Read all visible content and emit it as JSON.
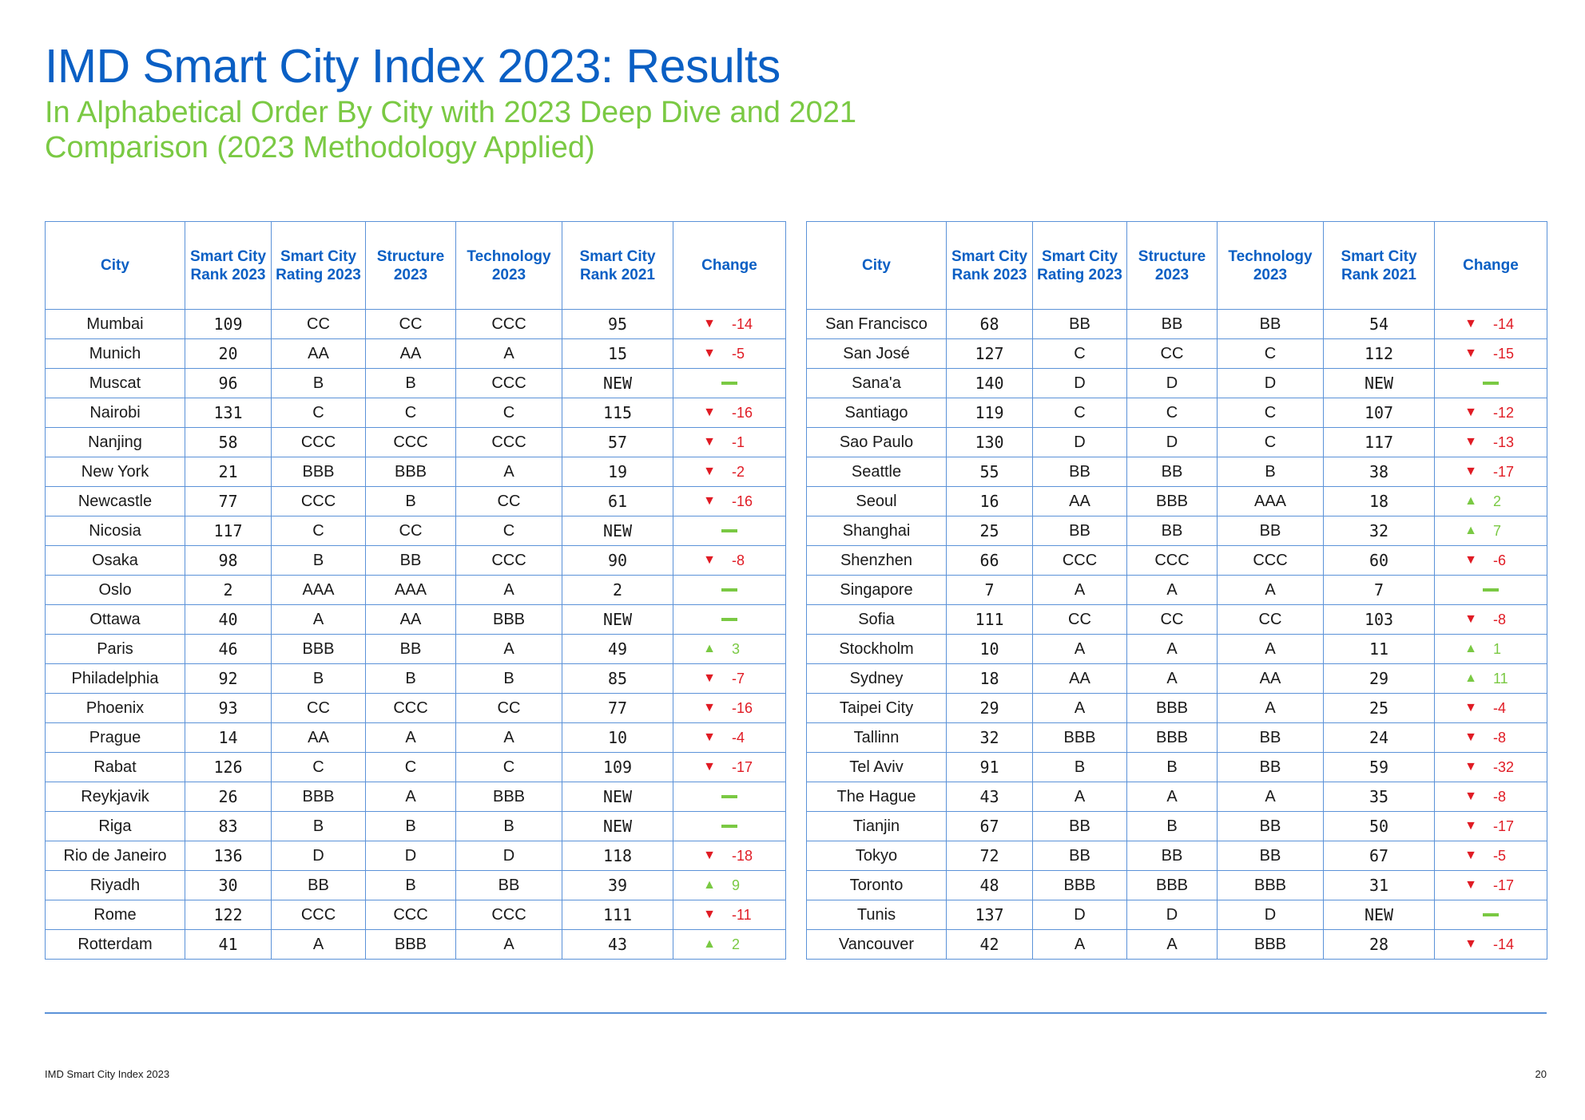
{
  "title": "IMD Smart City Index 2023: Results",
  "subtitle": "In Alphabetical Order By City with 2023 Deep Dive and 2021 Comparison (2023 Methodology Applied)",
  "colors": {
    "title": "#0a5fc4",
    "subtitle": "#7ac943",
    "border": "#5b92d8",
    "down": "#e01b24",
    "up": "#7ac943"
  },
  "columns": {
    "city": "City",
    "rank2023": "Smart City Rank 2023",
    "rating2023": "Smart City Rating 2023",
    "structure": "Structure 2023",
    "technology": "Technology 2023",
    "rank2021": "Smart City Rank 2021",
    "change": "Change"
  },
  "tables": {
    "left": [
      {
        "city": "Mumbai",
        "rank2023": "109",
        "rating": "CC",
        "structure": "CC",
        "technology": "CCC",
        "rank2021": "95",
        "dir": "down",
        "change": "-14"
      },
      {
        "city": "Munich",
        "rank2023": "20",
        "rating": "AA",
        "structure": "AA",
        "technology": "A",
        "rank2021": "15",
        "dir": "down",
        "change": "-5"
      },
      {
        "city": "Muscat",
        "rank2023": "96",
        "rating": "B",
        "structure": "B",
        "technology": "CCC",
        "rank2021": "NEW",
        "dir": "none",
        "change": ""
      },
      {
        "city": "Nairobi",
        "rank2023": "131",
        "rating": "C",
        "structure": "C",
        "technology": "C",
        "rank2021": "115",
        "dir": "down",
        "change": "-16"
      },
      {
        "city": "Nanjing",
        "rank2023": "58",
        "rating": "CCC",
        "structure": "CCC",
        "technology": "CCC",
        "rank2021": "57",
        "dir": "down",
        "change": "-1"
      },
      {
        "city": "New York",
        "rank2023": "21",
        "rating": "BBB",
        "structure": "BBB",
        "technology": "A",
        "rank2021": "19",
        "dir": "down",
        "change": "-2"
      },
      {
        "city": "Newcastle",
        "rank2023": "77",
        "rating": "CCC",
        "structure": "B",
        "technology": "CC",
        "rank2021": "61",
        "dir": "down",
        "change": "-16"
      },
      {
        "city": "Nicosia",
        "rank2023": "117",
        "rating": "C",
        "structure": "CC",
        "technology": "C",
        "rank2021": "NEW",
        "dir": "none",
        "change": ""
      },
      {
        "city": "Osaka",
        "rank2023": "98",
        "rating": "B",
        "structure": "BB",
        "technology": "CCC",
        "rank2021": "90",
        "dir": "down",
        "change": "-8"
      },
      {
        "city": "Oslo",
        "rank2023": "2",
        "rating": "AAA",
        "structure": "AAA",
        "technology": "A",
        "rank2021": "2",
        "dir": "none",
        "change": ""
      },
      {
        "city": "Ottawa",
        "rank2023": "40",
        "rating": "A",
        "structure": "AA",
        "technology": "BBB",
        "rank2021": "NEW",
        "dir": "none",
        "change": ""
      },
      {
        "city": "Paris",
        "rank2023": "46",
        "rating": "BBB",
        "structure": "BB",
        "technology": "A",
        "rank2021": "49",
        "dir": "up",
        "change": "3"
      },
      {
        "city": "Philadelphia",
        "rank2023": "92",
        "rating": "B",
        "structure": "B",
        "technology": "B",
        "rank2021": "85",
        "dir": "down",
        "change": "-7"
      },
      {
        "city": "Phoenix",
        "rank2023": "93",
        "rating": "CC",
        "structure": "CCC",
        "technology": "CC",
        "rank2021": "77",
        "dir": "down",
        "change": "-16"
      },
      {
        "city": "Prague",
        "rank2023": "14",
        "rating": "AA",
        "structure": "A",
        "technology": "A",
        "rank2021": "10",
        "dir": "down",
        "change": "-4"
      },
      {
        "city": "Rabat",
        "rank2023": "126",
        "rating": "C",
        "structure": "C",
        "technology": "C",
        "rank2021": "109",
        "dir": "down",
        "change": "-17"
      },
      {
        "city": "Reykjavik",
        "rank2023": "26",
        "rating": "BBB",
        "structure": "A",
        "technology": "BBB",
        "rank2021": "NEW",
        "dir": "none",
        "change": ""
      },
      {
        "city": "Riga",
        "rank2023": "83",
        "rating": "B",
        "structure": "B",
        "technology": "B",
        "rank2021": "NEW",
        "dir": "none",
        "change": ""
      },
      {
        "city": "Rio de Janeiro",
        "rank2023": "136",
        "rating": "D",
        "structure": "D",
        "technology": "D",
        "rank2021": "118",
        "dir": "down",
        "change": "-18"
      },
      {
        "city": "Riyadh",
        "rank2023": "30",
        "rating": "BB",
        "structure": "B",
        "technology": "BB",
        "rank2021": "39",
        "dir": "up",
        "change": "9"
      },
      {
        "city": "Rome",
        "rank2023": "122",
        "rating": "CCC",
        "structure": "CCC",
        "technology": "CCC",
        "rank2021": "111",
        "dir": "down",
        "change": "-11"
      },
      {
        "city": "Rotterdam",
        "rank2023": "41",
        "rating": "A",
        "structure": "BBB",
        "technology": "A",
        "rank2021": "43",
        "dir": "up",
        "change": "2"
      }
    ],
    "right": [
      {
        "city": "San Francisco",
        "rank2023": "68",
        "rating": "BB",
        "structure": "BB",
        "technology": "BB",
        "rank2021": "54",
        "dir": "down",
        "change": "-14"
      },
      {
        "city": "San José",
        "rank2023": "127",
        "rating": "C",
        "structure": "CC",
        "technology": "C",
        "rank2021": "112",
        "dir": "down",
        "change": "-15"
      },
      {
        "city": "Sana'a",
        "rank2023": "140",
        "rating": "D",
        "structure": "D",
        "technology": "D",
        "rank2021": "NEW",
        "dir": "none",
        "change": ""
      },
      {
        "city": "Santiago",
        "rank2023": "119",
        "rating": "C",
        "structure": "C",
        "technology": "C",
        "rank2021": "107",
        "dir": "down",
        "change": "-12"
      },
      {
        "city": "Sao Paulo",
        "rank2023": "130",
        "rating": "D",
        "structure": "D",
        "technology": "C",
        "rank2021": "117",
        "dir": "down",
        "change": "-13"
      },
      {
        "city": "Seattle",
        "rank2023": "55",
        "rating": "BB",
        "structure": "BB",
        "technology": "B",
        "rank2021": "38",
        "dir": "down",
        "change": "-17"
      },
      {
        "city": "Seoul",
        "rank2023": "16",
        "rating": "AA",
        "structure": "BBB",
        "technology": "AAA",
        "rank2021": "18",
        "dir": "up",
        "change": "2"
      },
      {
        "city": "Shanghai",
        "rank2023": "25",
        "rating": "BB",
        "structure": "BB",
        "technology": "BB",
        "rank2021": "32",
        "dir": "up",
        "change": "7"
      },
      {
        "city": "Shenzhen",
        "rank2023": "66",
        "rating": "CCC",
        "structure": "CCC",
        "technology": "CCC",
        "rank2021": "60",
        "dir": "down",
        "change": "-6"
      },
      {
        "city": "Singapore",
        "rank2023": "7",
        "rating": "A",
        "structure": "A",
        "technology": "A",
        "rank2021": "7",
        "dir": "none",
        "change": ""
      },
      {
        "city": "Sofia",
        "rank2023": "111",
        "rating": "CC",
        "structure": "CC",
        "technology": "CC",
        "rank2021": "103",
        "dir": "down",
        "change": "-8"
      },
      {
        "city": "Stockholm",
        "rank2023": "10",
        "rating": "A",
        "structure": "A",
        "technology": "A",
        "rank2021": "11",
        "dir": "up",
        "change": "1"
      },
      {
        "city": "Sydney",
        "rank2023": "18",
        "rating": "AA",
        "structure": "A",
        "technology": "AA",
        "rank2021": "29",
        "dir": "up",
        "change": "11"
      },
      {
        "city": "Taipei City",
        "rank2023": "29",
        "rating": "A",
        "structure": "BBB",
        "technology": "A",
        "rank2021": "25",
        "dir": "down",
        "change": "-4"
      },
      {
        "city": "Tallinn",
        "rank2023": "32",
        "rating": "BBB",
        "structure": "BBB",
        "technology": "BB",
        "rank2021": "24",
        "dir": "down",
        "change": "-8"
      },
      {
        "city": "Tel Aviv",
        "rank2023": "91",
        "rating": "B",
        "structure": "B",
        "technology": "BB",
        "rank2021": "59",
        "dir": "down",
        "change": "-32"
      },
      {
        "city": "The Hague",
        "rank2023": "43",
        "rating": "A",
        "structure": "A",
        "technology": "A",
        "rank2021": "35",
        "dir": "down",
        "change": "-8"
      },
      {
        "city": "Tianjin",
        "rank2023": "67",
        "rating": "BB",
        "structure": "B",
        "technology": "BB",
        "rank2021": "50",
        "dir": "down",
        "change": "-17"
      },
      {
        "city": "Tokyo",
        "rank2023": "72",
        "rating": "BB",
        "structure": "BB",
        "technology": "BB",
        "rank2021": "67",
        "dir": "down",
        "change": "-5"
      },
      {
        "city": "Toronto",
        "rank2023": "48",
        "rating": "BBB",
        "structure": "BBB",
        "technology": "BBB",
        "rank2021": "31",
        "dir": "down",
        "change": "-17"
      },
      {
        "city": "Tunis",
        "rank2023": "137",
        "rating": "D",
        "structure": "D",
        "technology": "D",
        "rank2021": "NEW",
        "dir": "none",
        "change": ""
      },
      {
        "city": "Vancouver",
        "rank2023": "42",
        "rating": "A",
        "structure": "A",
        "technology": "BBB",
        "rank2021": "28",
        "dir": "down",
        "change": "-14"
      }
    ]
  },
  "footer": {
    "label": "IMD Smart City Index 2023",
    "page": "20"
  }
}
